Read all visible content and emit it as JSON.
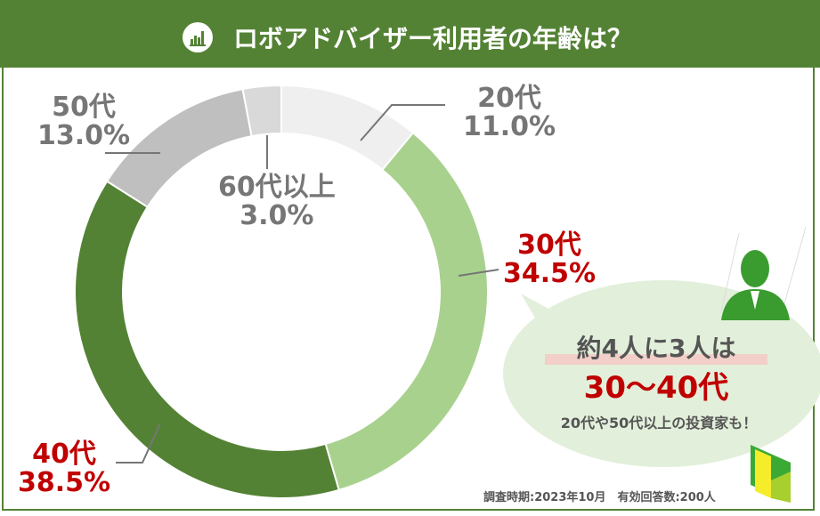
{
  "header": {
    "title": "ロボアドバイザー利用者の年齢は？",
    "icon": "bar-chart-icon"
  },
  "chart_data": {
    "type": "pie",
    "title": "ロボアドバイザー利用者の年齢は？",
    "donut": true,
    "categories": [
      "20代",
      "30代",
      "40代",
      "50代",
      "60代以上"
    ],
    "values": [
      11.0,
      34.5,
      38.5,
      13.0,
      3.0
    ],
    "value_labels": [
      "11.0%",
      "34.5%",
      "38.5%",
      "13.0%",
      "3.0%"
    ],
    "colors": [
      "#efefef",
      "#a9d18e",
      "#548235",
      "#bfbfbf",
      "#d9d9d9"
    ],
    "highlight_label_color": "#c00000",
    "label_color": "#767676"
  },
  "callout": {
    "line1": "約4人に3人は",
    "line2": "30〜40代",
    "line3": "20代や50代以上の投資家も！",
    "icons": [
      "businessman-icon",
      "door-icon"
    ]
  },
  "footer": {
    "note": "調査時期:2023年10月　有効回答数:200人"
  }
}
